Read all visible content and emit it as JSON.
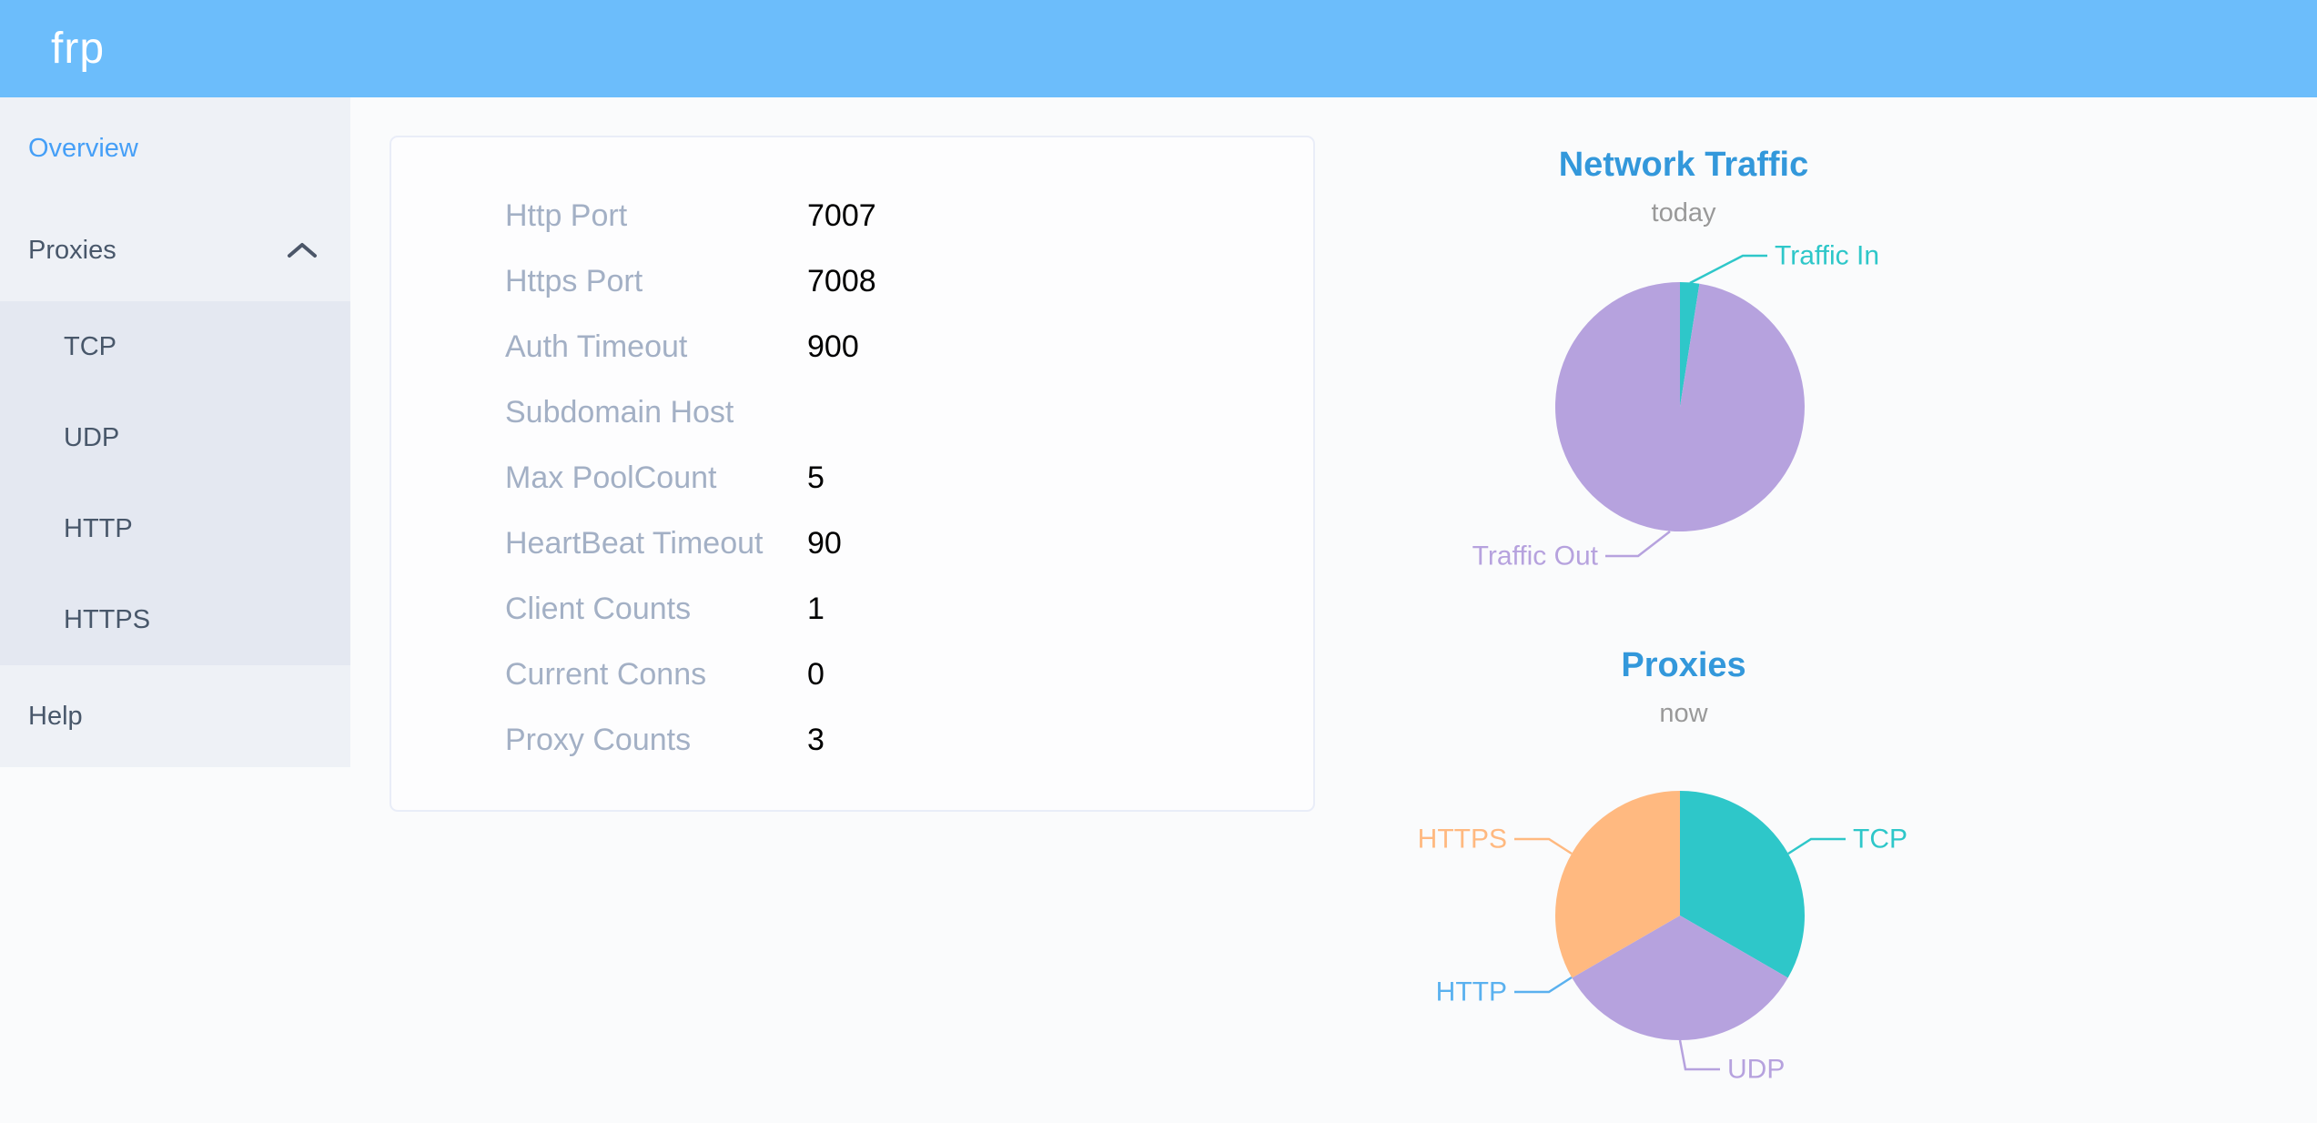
{
  "header": {
    "logo": "frp"
  },
  "sidebar": {
    "items": [
      {
        "label": "Overview",
        "active": true
      },
      {
        "label": "Proxies",
        "expanded": true,
        "children": [
          "TCP",
          "UDP",
          "HTTP",
          "HTTPS"
        ]
      },
      {
        "label": "Help"
      }
    ]
  },
  "overview_card": {
    "rows": [
      {
        "label": "Http Port",
        "value": "7007"
      },
      {
        "label": "Https Port",
        "value": "7008"
      },
      {
        "label": "Auth Timeout",
        "value": "900"
      },
      {
        "label": "Subdomain Host",
        "value": ""
      },
      {
        "label": "Max PoolCount",
        "value": "5"
      },
      {
        "label": "HeartBeat Timeout",
        "value": "90"
      },
      {
        "label": "Client Counts",
        "value": "1"
      },
      {
        "label": "Current Conns",
        "value": "0"
      },
      {
        "label": "Proxy Counts",
        "value": "3"
      }
    ]
  },
  "chart_data": [
    {
      "type": "pie",
      "title": "Network Traffic",
      "subtitle": "today",
      "legend_position": "callout-labels",
      "series": [
        {
          "name": "Traffic In",
          "value": 2.5,
          "color": "#2ec7c9"
        },
        {
          "name": "Traffic Out",
          "value": 97.5,
          "color": "#b6a2de"
        }
      ]
    },
    {
      "type": "pie",
      "title": "Proxies",
      "subtitle": "now",
      "legend_position": "callout-labels",
      "series": [
        {
          "name": "TCP",
          "value": 1,
          "color": "#2ec7c9"
        },
        {
          "name": "UDP",
          "value": 1,
          "color": "#b6a2de"
        },
        {
          "name": "HTTP",
          "value": 0,
          "color": "#5ab1ef"
        },
        {
          "name": "HTTPS",
          "value": 1,
          "color": "#ffb980"
        }
      ]
    }
  ],
  "colors": {
    "header_bg": "#6cbdfb",
    "sidebar_bg": "#eef1f6",
    "submenu_bg": "#e4e8f1",
    "sidebar_text": "#48576a",
    "active_link": "#459ff7",
    "page_bg": "#fafbfc",
    "card_bg": "#fdfdfe",
    "card_border": "#e9edf8",
    "label_text": "#a3b0c5",
    "value_text": "#000000",
    "chart_title": "#3398db",
    "chart_subtitle": "#999999"
  }
}
